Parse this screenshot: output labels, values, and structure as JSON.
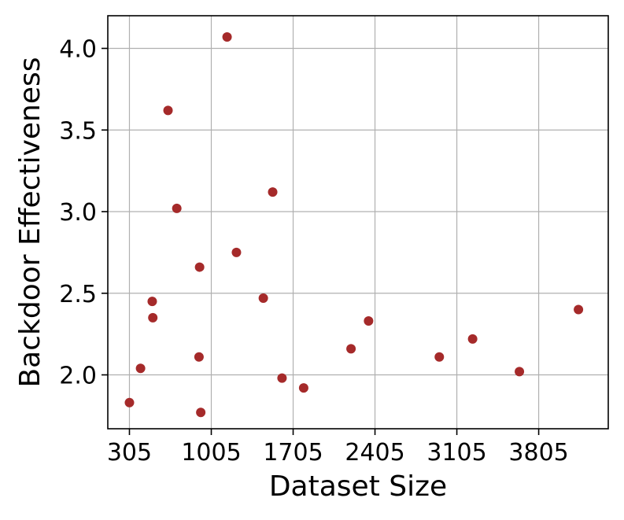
{
  "chart_data": {
    "type": "scatter",
    "xlabel": "Dataset Size",
    "ylabel": "Backdoor Effectiveness",
    "xlim": [
      120,
      4400
    ],
    "ylim": [
      1.67,
      4.2
    ],
    "xticks": [
      305,
      1005,
      1705,
      2405,
      3105,
      3805
    ],
    "yticks": [
      2.0,
      2.5,
      3.0,
      3.5,
      4.0
    ],
    "ytick_labels": [
      "2.0",
      "2.5",
      "3.0",
      "3.5",
      "4.0"
    ],
    "grid": true,
    "marker_color": "#a52a2a",
    "points": [
      {
        "x": 305,
        "y": 1.83
      },
      {
        "x": 400,
        "y": 2.04
      },
      {
        "x": 500,
        "y": 2.45
      },
      {
        "x": 505,
        "y": 2.35
      },
      {
        "x": 635,
        "y": 3.62
      },
      {
        "x": 710,
        "y": 3.02
      },
      {
        "x": 900,
        "y": 2.11
      },
      {
        "x": 905,
        "y": 2.66
      },
      {
        "x": 915,
        "y": 1.77
      },
      {
        "x": 1140,
        "y": 4.07
      },
      {
        "x": 1220,
        "y": 2.75
      },
      {
        "x": 1450,
        "y": 2.47
      },
      {
        "x": 1530,
        "y": 3.12
      },
      {
        "x": 1610,
        "y": 1.98
      },
      {
        "x": 1795,
        "y": 1.92
      },
      {
        "x": 2200,
        "y": 2.16
      },
      {
        "x": 2350,
        "y": 2.33
      },
      {
        "x": 2955,
        "y": 2.11
      },
      {
        "x": 3240,
        "y": 2.22
      },
      {
        "x": 3640,
        "y": 2.02
      },
      {
        "x": 4145,
        "y": 2.4
      }
    ]
  }
}
